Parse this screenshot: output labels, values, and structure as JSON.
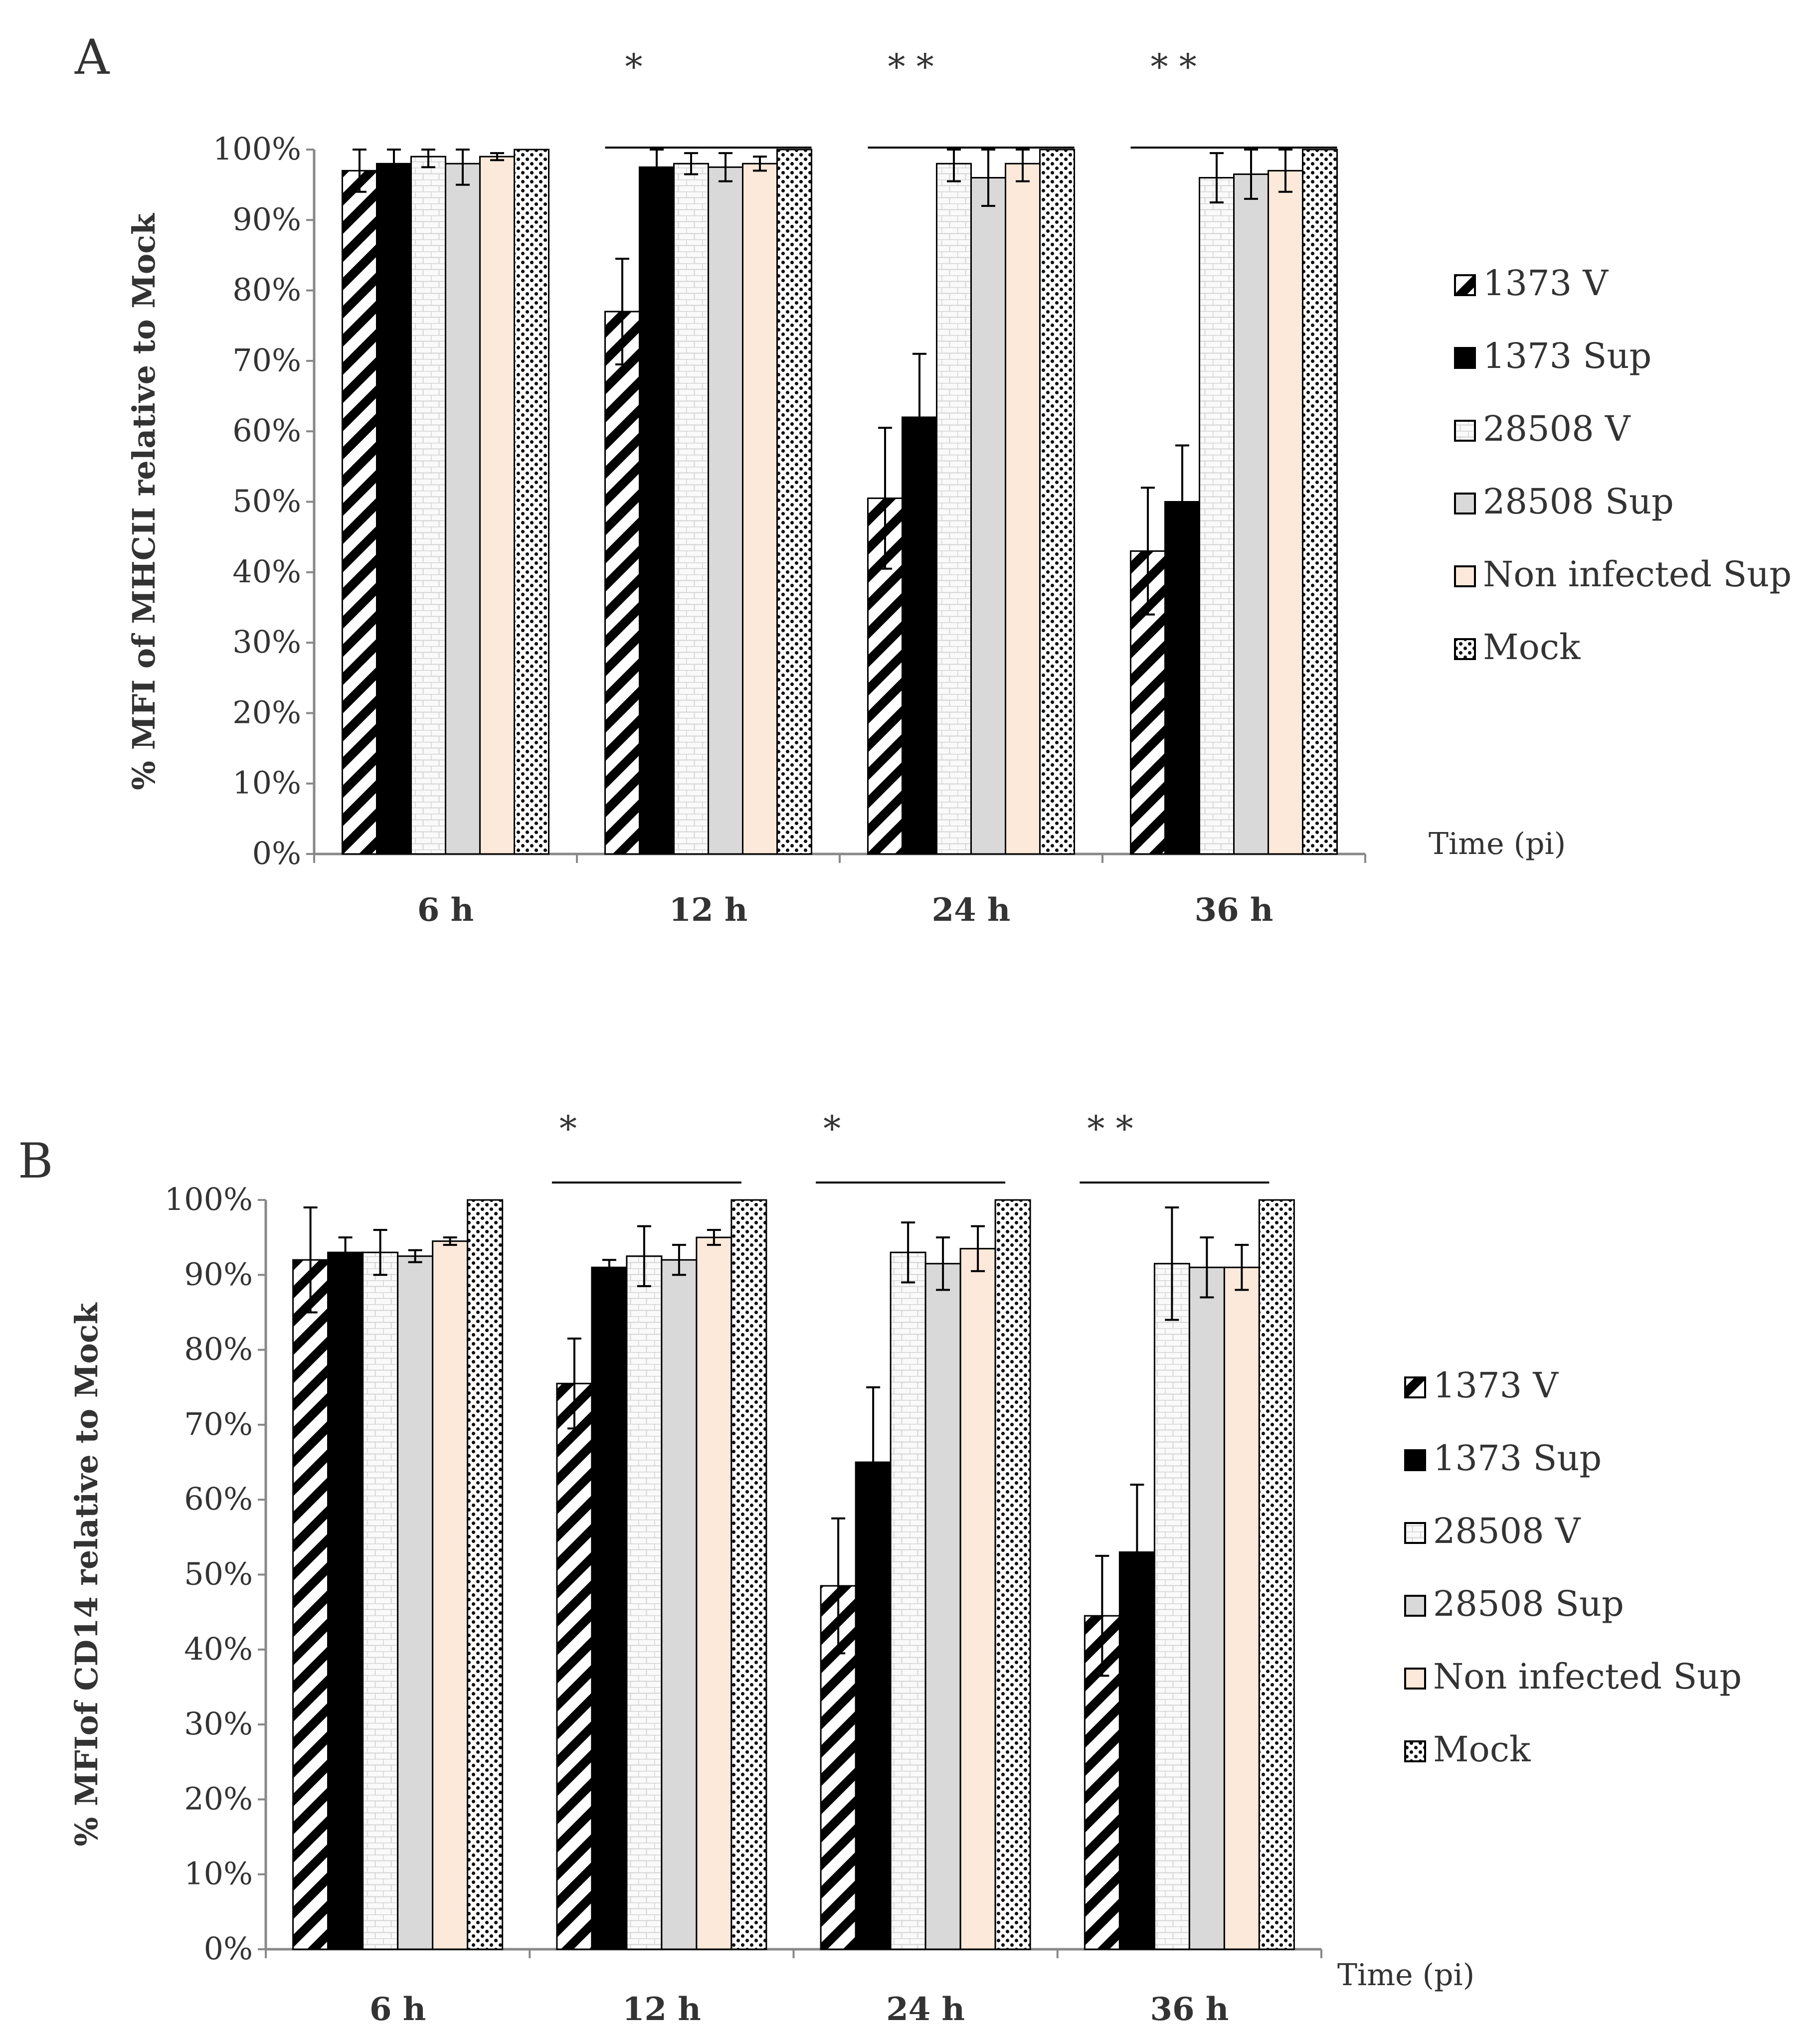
{
  "chart_data": [
    {
      "type": "bar",
      "panel_label": "A",
      "ylabel": "% MFI of MHCII relative to Mock",
      "xlabel": "Time (pi)",
      "categories": [
        "6 h",
        "12 h",
        "24 h",
        "36 h"
      ],
      "ylim": [
        0,
        100
      ],
      "yticks": [
        "0%",
        "10%",
        "20%",
        "30%",
        "40%",
        "50%",
        "60%",
        "70%",
        "80%",
        "90%",
        "100%"
      ],
      "series": [
        {
          "name": "1373 V",
          "values": [
            97,
            77,
            50.5,
            43
          ],
          "errors": [
            3,
            7.5,
            10,
            9
          ]
        },
        {
          "name": "1373 Sup",
          "values": [
            98,
            97.5,
            62,
            50
          ],
          "errors": [
            2,
            2.5,
            9,
            8
          ]
        },
        {
          "name": "28508 V",
          "values": [
            99,
            98,
            98,
            96
          ],
          "errors": [
            1.5,
            1.5,
            2.5,
            3.5
          ]
        },
        {
          "name": "28508 Sup",
          "values": [
            98,
            97.5,
            96,
            96.5
          ],
          "errors": [
            3,
            2,
            4,
            3.5
          ]
        },
        {
          "name": "Non infected Sup",
          "values": [
            99,
            98,
            98,
            97
          ],
          "errors": [
            0.5,
            1,
            2.5,
            3
          ]
        },
        {
          "name": "Mock",
          "values": [
            100,
            100,
            100,
            100
          ],
          "errors": [
            0,
            0,
            0,
            0
          ]
        }
      ],
      "significance": [
        {
          "label": "*",
          "category_index": 1
        },
        {
          "label": "* *",
          "category_index": 2
        },
        {
          "label": "* *",
          "category_index": 3
        }
      ],
      "legend_position": "right"
    },
    {
      "type": "bar",
      "panel_label": "B",
      "ylabel": "% MFIof CD14 relative to Mock",
      "xlabel": "Time (pi)",
      "categories": [
        "6 h",
        "12 h",
        "24 h",
        "36 h"
      ],
      "ylim": [
        0,
        100
      ],
      "yticks": [
        "0%",
        "10%",
        "20%",
        "30%",
        "40%",
        "50%",
        "60%",
        "70%",
        "80%",
        "90%",
        "100%"
      ],
      "series": [
        {
          "name": "1373 V",
          "values": [
            92,
            75.5,
            48.5,
            44.5
          ],
          "errors": [
            7,
            6,
            9,
            8
          ]
        },
        {
          "name": "1373 Sup",
          "values": [
            93,
            91,
            65,
            53
          ],
          "errors": [
            2,
            1,
            10,
            9
          ]
        },
        {
          "name": "28508 V",
          "values": [
            93,
            92.5,
            93,
            91.5
          ],
          "errors": [
            3,
            4,
            4,
            7.5
          ]
        },
        {
          "name": "28508 Sup",
          "values": [
            92.5,
            92,
            91.5,
            91
          ],
          "errors": [
            0.8,
            2,
            3.5,
            4
          ]
        },
        {
          "name": "Non infected Sup",
          "values": [
            94.5,
            95,
            93.5,
            91
          ],
          "errors": [
            0.5,
            1,
            3,
            3
          ]
        },
        {
          "name": "Mock",
          "values": [
            100,
            100,
            100,
            100
          ],
          "errors": [
            0,
            0,
            0,
            0
          ]
        }
      ],
      "significance": [
        {
          "label": "*",
          "category_index": 1
        },
        {
          "label": "*",
          "category_index": 2
        },
        {
          "label": "* *",
          "category_index": 3
        }
      ],
      "legend_position": "right"
    }
  ]
}
